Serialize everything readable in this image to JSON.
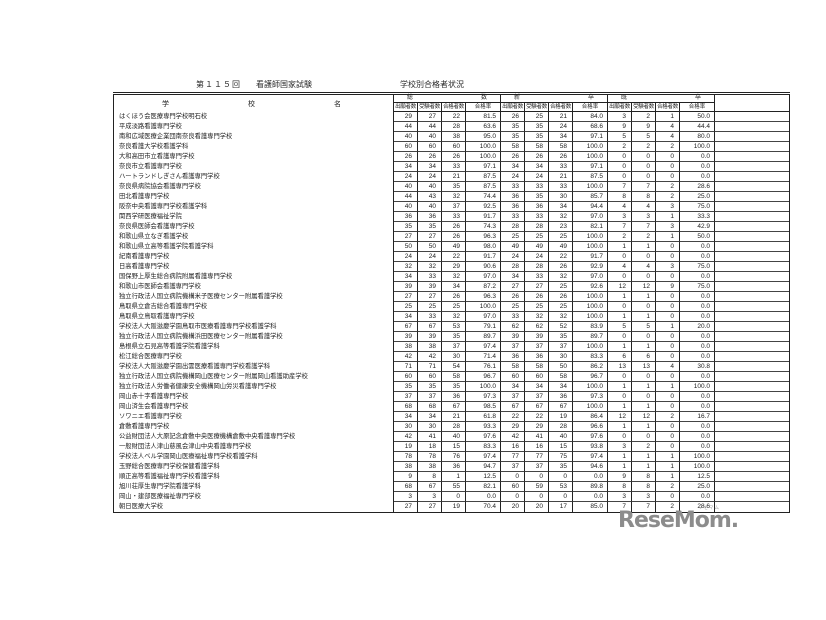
{
  "title": {
    "exam_no": "第１１５回",
    "exam_name": "看護師国家試験",
    "subtitle": "学校別合格者状況"
  },
  "table": {
    "name_header_chars": [
      "学",
      "校",
      "名"
    ],
    "groups": [
      [
        "総",
        "数"
      ],
      [
        "新",
        "卒"
      ],
      [
        "既",
        "卒"
      ]
    ],
    "col_headers": [
      "出願者数",
      "受験者数",
      "合格者数",
      "合格率"
    ],
    "rows": [
      {
        "name": "はくほう会医療専門学校明石校",
        "values": [
          "29",
          "27",
          "22",
          "81.5",
          "26",
          "25",
          "21",
          "84.0",
          "3",
          "2",
          "1",
          "50.0"
        ]
      },
      {
        "name": "平成淡路看護専門学校",
        "values": [
          "44",
          "44",
          "28",
          "63.6",
          "35",
          "35",
          "24",
          "68.6",
          "9",
          "9",
          "4",
          "44.4"
        ]
      },
      {
        "name": "南和広域医療企業団南奈良看護専門学校",
        "values": [
          "40",
          "40",
          "38",
          "95.0",
          "35",
          "35",
          "34",
          "97.1",
          "5",
          "5",
          "4",
          "80.0"
        ]
      },
      {
        "name": "奈良看護大学校看護学科",
        "values": [
          "60",
          "60",
          "60",
          "100.0",
          "58",
          "58",
          "58",
          "100.0",
          "2",
          "2",
          "2",
          "100.0"
        ]
      },
      {
        "name": "大和高田市立看護専門学校",
        "values": [
          "26",
          "26",
          "26",
          "100.0",
          "26",
          "26",
          "26",
          "100.0",
          "0",
          "0",
          "0",
          "0.0"
        ]
      },
      {
        "name": "奈良市立看護専門学校",
        "values": [
          "34",
          "34",
          "33",
          "97.1",
          "34",
          "34",
          "33",
          "97.1",
          "0",
          "0",
          "0",
          "0.0"
        ]
      },
      {
        "name": "ハートランドしぎさん看護専門学校",
        "values": [
          "24",
          "24",
          "21",
          "87.5",
          "24",
          "24",
          "21",
          "87.5",
          "0",
          "0",
          "0",
          "0.0"
        ]
      },
      {
        "name": "奈良県病院協会看護専門学校",
        "values": [
          "40",
          "40",
          "35",
          "87.5",
          "33",
          "33",
          "33",
          "100.0",
          "7",
          "7",
          "2",
          "28.6"
        ]
      },
      {
        "name": "田北看護専門学校",
        "values": [
          "44",
          "43",
          "32",
          "74.4",
          "36",
          "35",
          "30",
          "85.7",
          "8",
          "8",
          "2",
          "25.0"
        ]
      },
      {
        "name": "阪奈中央看護専門学校看護学科",
        "values": [
          "40",
          "40",
          "37",
          "92.5",
          "36",
          "36",
          "34",
          "94.4",
          "4",
          "4",
          "3",
          "75.0"
        ]
      },
      {
        "name": "関西学研医療福祉学院",
        "values": [
          "36",
          "36",
          "33",
          "91.7",
          "33",
          "33",
          "32",
          "97.0",
          "3",
          "3",
          "1",
          "33.3"
        ]
      },
      {
        "name": "奈良県医師会看護専門学校",
        "values": [
          "35",
          "35",
          "26",
          "74.3",
          "28",
          "28",
          "23",
          "82.1",
          "7",
          "7",
          "3",
          "42.9"
        ]
      },
      {
        "name": "和歌山県立なぎ看護学校",
        "values": [
          "27",
          "27",
          "26",
          "96.3",
          "25",
          "25",
          "25",
          "100.0",
          "2",
          "2",
          "1",
          "50.0"
        ]
      },
      {
        "name": "和歌山県立高等看護学院看護学科",
        "values": [
          "50",
          "50",
          "49",
          "98.0",
          "49",
          "49",
          "49",
          "100.0",
          "1",
          "1",
          "0",
          "0.0"
        ]
      },
      {
        "name": "紀南看護専門学校",
        "values": [
          "24",
          "24",
          "22",
          "91.7",
          "24",
          "24",
          "22",
          "91.7",
          "0",
          "0",
          "0",
          "0.0"
        ]
      },
      {
        "name": "日高看護専門学校",
        "values": [
          "32",
          "32",
          "29",
          "90.6",
          "28",
          "28",
          "26",
          "92.9",
          "4",
          "4",
          "3",
          "75.0"
        ]
      },
      {
        "name": "国保野上厚生総合病院附属看護専門学校",
        "values": [
          "34",
          "33",
          "32",
          "97.0",
          "34",
          "33",
          "32",
          "97.0",
          "0",
          "0",
          "0",
          "0.0"
        ]
      },
      {
        "name": "和歌山市医師会看護専門学校",
        "values": [
          "39",
          "39",
          "34",
          "87.2",
          "27",
          "27",
          "25",
          "92.6",
          "12",
          "12",
          "9",
          "75.0"
        ]
      },
      {
        "name": "独立行政法人国立病院機構米子医療センター附属看護学校",
        "values": [
          "27",
          "27",
          "26",
          "96.3",
          "26",
          "26",
          "26",
          "100.0",
          "1",
          "1",
          "0",
          "0.0"
        ]
      },
      {
        "name": "鳥取県立倉吉総合看護専門学校",
        "values": [
          "25",
          "25",
          "25",
          "100.0",
          "25",
          "25",
          "25",
          "100.0",
          "0",
          "0",
          "0",
          "0.0"
        ]
      },
      {
        "name": "鳥取県立鳥取看護専門学校",
        "values": [
          "34",
          "33",
          "32",
          "97.0",
          "33",
          "32",
          "32",
          "100.0",
          "1",
          "1",
          "0",
          "0.0"
        ]
      },
      {
        "name": "学校法人大阪滋慶学園鳥取市医療看護専門学校看護学科",
        "values": [
          "67",
          "67",
          "53",
          "79.1",
          "62",
          "62",
          "52",
          "83.9",
          "5",
          "5",
          "1",
          "20.0"
        ]
      },
      {
        "name": "独立行政法人国立病院機構浜田医療センター附属看護学校",
        "values": [
          "39",
          "39",
          "35",
          "89.7",
          "39",
          "39",
          "35",
          "89.7",
          "0",
          "0",
          "0",
          "0.0"
        ]
      },
      {
        "name": "島根県立石見高等看護学院看護学科",
        "values": [
          "38",
          "38",
          "37",
          "97.4",
          "37",
          "37",
          "37",
          "100.0",
          "1",
          "1",
          "0",
          "0.0"
        ]
      },
      {
        "name": "松江総合医療専門学校",
        "values": [
          "42",
          "42",
          "30",
          "71.4",
          "36",
          "36",
          "30",
          "83.3",
          "6",
          "6",
          "0",
          "0.0"
        ]
      },
      {
        "name": "学校法人大阪滋慶学園出雲医療看護専門学校看護学科",
        "values": [
          "71",
          "71",
          "54",
          "76.1",
          "58",
          "58",
          "50",
          "86.2",
          "13",
          "13",
          "4",
          "30.8"
        ]
      },
      {
        "name": "独立行政法人国立病院機構岡山医療センター附属岡山看護助産学校",
        "values": [
          "60",
          "60",
          "58",
          "96.7",
          "60",
          "60",
          "58",
          "96.7",
          "0",
          "0",
          "0",
          "0.0"
        ]
      },
      {
        "name": "独立行政法人労働者健康安全機構岡山労災看護専門学校",
        "values": [
          "35",
          "35",
          "35",
          "100.0",
          "34",
          "34",
          "34",
          "100.0",
          "1",
          "1",
          "1",
          "100.0"
        ]
      },
      {
        "name": "岡山赤十字看護専門学校",
        "values": [
          "37",
          "37",
          "36",
          "97.3",
          "37",
          "37",
          "36",
          "97.3",
          "0",
          "0",
          "0",
          "0.0"
        ]
      },
      {
        "name": "岡山済生会看護専門学校",
        "values": [
          "68",
          "68",
          "67",
          "98.5",
          "67",
          "67",
          "67",
          "100.0",
          "1",
          "1",
          "0",
          "0.0"
        ]
      },
      {
        "name": "ソワニエ看護専門学校",
        "values": [
          "34",
          "34",
          "21",
          "61.8",
          "22",
          "22",
          "19",
          "86.4",
          "12",
          "12",
          "2",
          "16.7"
        ]
      },
      {
        "name": "倉敷看護専門学校",
        "values": [
          "30",
          "30",
          "28",
          "93.3",
          "29",
          "29",
          "28",
          "96.6",
          "1",
          "1",
          "0",
          "0.0"
        ]
      },
      {
        "name": "公益財団法人大原記念倉敷中央医療機構倉敷中央看護専門学校",
        "values": [
          "42",
          "41",
          "40",
          "97.6",
          "42",
          "41",
          "40",
          "97.6",
          "0",
          "0",
          "0",
          "0.0"
        ]
      },
      {
        "name": "一般財団法人津山慈風会津山中央看護専門学校",
        "values": [
          "19",
          "18",
          "15",
          "83.3",
          "16",
          "16",
          "15",
          "93.8",
          "3",
          "2",
          "0",
          "0.0"
        ]
      },
      {
        "name": "学校法人ベル学園岡山医療福祉専門学校看護学科",
        "values": [
          "78",
          "78",
          "76",
          "97.4",
          "77",
          "77",
          "75",
          "97.4",
          "1",
          "1",
          "1",
          "100.0"
        ]
      },
      {
        "name": "玉野総合医療専門学校保健看護学科",
        "values": [
          "38",
          "38",
          "36",
          "94.7",
          "37",
          "37",
          "35",
          "94.6",
          "1",
          "1",
          "1",
          "100.0"
        ]
      },
      {
        "name": "順正高等看護福祉専門学校看護学科",
        "values": [
          "9",
          "8",
          "1",
          "12.5",
          "0",
          "0",
          "0",
          "0.0",
          "9",
          "8",
          "1",
          "12.5"
        ]
      },
      {
        "name": "旭川荘厚生専門学院看護学科",
        "values": [
          "68",
          "67",
          "55",
          "82.1",
          "60",
          "59",
          "53",
          "89.8",
          "8",
          "8",
          "2",
          "25.0"
        ]
      },
      {
        "name": "岡山・建部医療福祉専門学校",
        "values": [
          "3",
          "3",
          "0",
          "0.0",
          "0",
          "0",
          "0",
          "0.0",
          "3",
          "3",
          "0",
          "0.0"
        ]
      },
      {
        "name": "朝日医療大学校",
        "values": [
          "27",
          "27",
          "19",
          "70.4",
          "20",
          "20",
          "17",
          "85.0",
          "7",
          "7",
          "2",
          "28.6"
        ]
      }
    ]
  },
  "watermark": {
    "text": "ReseMom.",
    "ruby": "リセマム"
  }
}
